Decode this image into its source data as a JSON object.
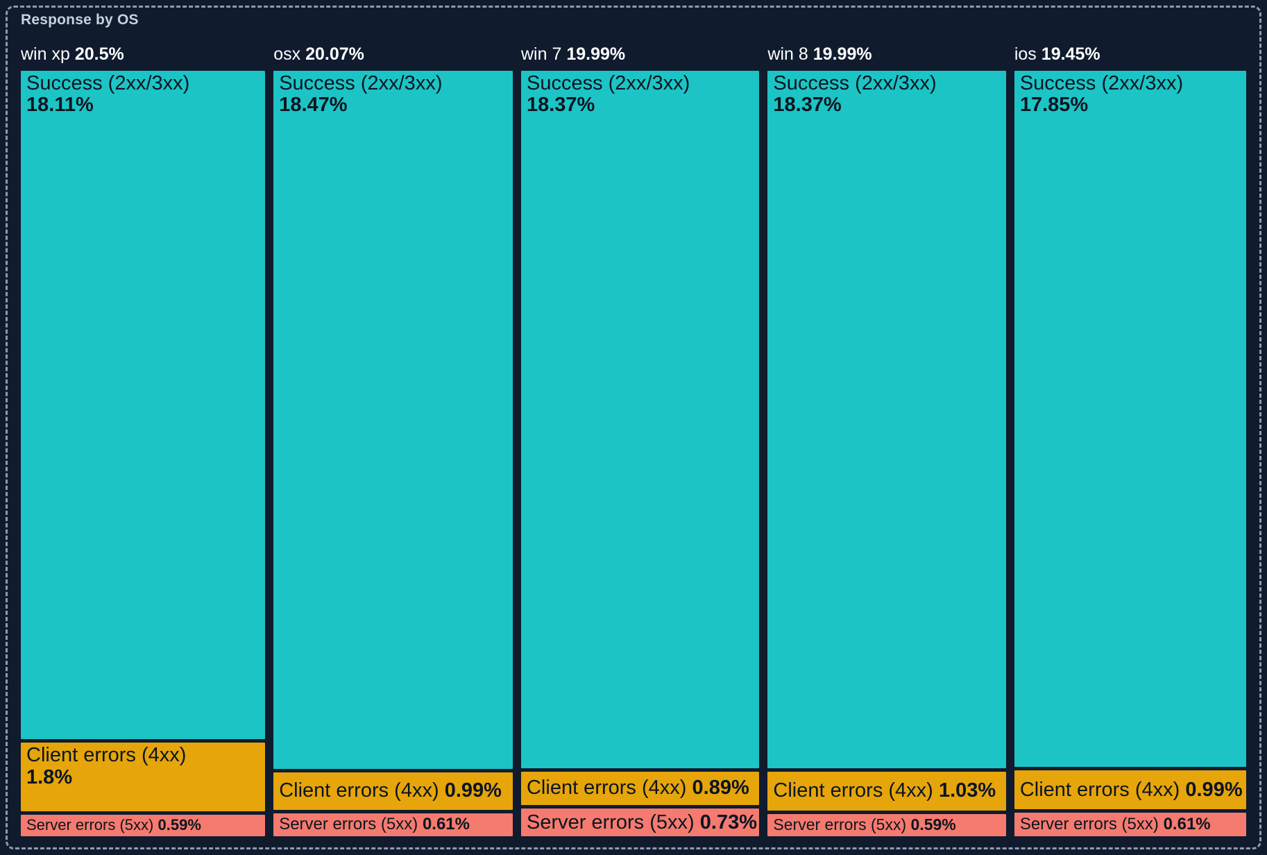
{
  "panel": {
    "title": "Response by OS"
  },
  "colors": {
    "background": "#101b2e",
    "border_dashed": "#8c9cb8",
    "title_text": "#c9d1dd",
    "header_text": "#ffffff",
    "segment_text": "#0b1522",
    "success": "#1cc4c5",
    "client_errors": "#e6a50a",
    "server_errors": "#f57a6f"
  },
  "chart_data": {
    "type": "treemap",
    "title": "Response by OS",
    "orientation": "columns-by-category, stacked segments per column, area proportional to percent",
    "categories": [
      "win xp",
      "osx",
      "win 7",
      "win 8",
      "ios"
    ],
    "totals": [
      20.5,
      20.07,
      19.99,
      19.99,
      19.45
    ],
    "series": [
      {
        "name": "Success (2xx/3xx)",
        "color": "#1cc4c5",
        "values": [
          18.11,
          18.47,
          18.37,
          18.37,
          17.85
        ]
      },
      {
        "name": "Client errors (4xx)",
        "color": "#e6a50a",
        "values": [
          1.8,
          0.99,
          0.89,
          1.03,
          0.99
        ]
      },
      {
        "name": "Server errors (5xx)",
        "color": "#f57a6f",
        "values": [
          0.59,
          0.61,
          0.73,
          0.59,
          0.61
        ]
      }
    ],
    "unit": "%"
  },
  "columns": [
    {
      "os": "win xp",
      "total": "20.5%",
      "segments": [
        {
          "label": "Success (2xx/3xx)",
          "value": "18.11%"
        },
        {
          "label": "Client errors (4xx)",
          "value": "1.8%"
        },
        {
          "label": "Server errors (5xx)",
          "value": "0.59%"
        }
      ]
    },
    {
      "os": "osx",
      "total": "20.07%",
      "segments": [
        {
          "label": "Success (2xx/3xx)",
          "value": "18.47%"
        },
        {
          "label": "Client errors (4xx)",
          "value": "0.99%"
        },
        {
          "label": "Server errors (5xx)",
          "value": "0.61%"
        }
      ]
    },
    {
      "os": "win 7",
      "total": "19.99%",
      "segments": [
        {
          "label": "Success (2xx/3xx)",
          "value": "18.37%"
        },
        {
          "label": "Client errors (4xx)",
          "value": "0.89%"
        },
        {
          "label": "Server errors (5xx)",
          "value": "0.73%"
        }
      ]
    },
    {
      "os": "win 8",
      "total": "19.99%",
      "segments": [
        {
          "label": "Success (2xx/3xx)",
          "value": "18.37%"
        },
        {
          "label": "Client errors (4xx)",
          "value": "1.03%"
        },
        {
          "label": "Server errors (5xx)",
          "value": "0.59%"
        }
      ]
    },
    {
      "os": "ios",
      "total": "19.45%",
      "segments": [
        {
          "label": "Success (2xx/3xx)",
          "value": "17.85%"
        },
        {
          "label": "Client errors (4xx)",
          "value": "0.99%"
        },
        {
          "label": "Server errors (5xx)",
          "value": "0.61%"
        }
      ]
    }
  ]
}
